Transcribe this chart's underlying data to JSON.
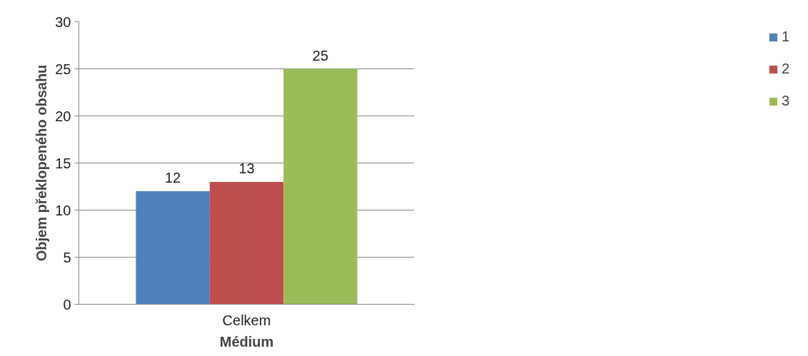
{
  "chart_data": {
    "type": "bar",
    "xlabel": "Médium",
    "ylabel": "Objem překlopeného obsahu",
    "categories": [
      "Celkem"
    ],
    "series": [
      {
        "name": "1",
        "color": "#4f81bd",
        "values": [
          12
        ]
      },
      {
        "name": "2",
        "color": "#c0504d",
        "values": [
          13
        ]
      },
      {
        "name": "3",
        "color": "#9bbb59",
        "values": [
          25
        ]
      }
    ],
    "ylim": [
      0,
      30
    ],
    "yticks": [
      0,
      5,
      10,
      15,
      20,
      25,
      30
    ],
    "grid": "y",
    "legend": "right",
    "data_labels": true
  }
}
